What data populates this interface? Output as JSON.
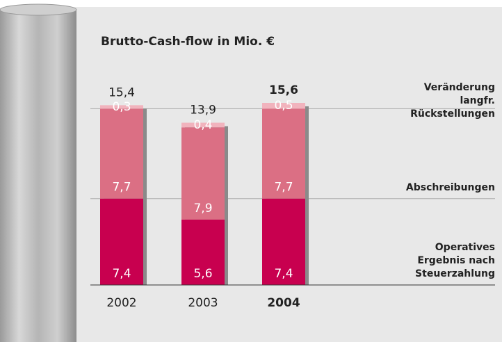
{
  "chart_data": {
    "type": "stacked-bar",
    "title": "Brutto-Cash-flow in Mio. €",
    "categories": [
      "2002",
      "2003",
      "2004"
    ],
    "emphasis": [
      false,
      false,
      true
    ],
    "series": [
      {
        "name": "Operatives Ergebnis nach Steuerzahlung",
        "color": "#c8004f",
        "values": [
          7.4,
          5.6,
          7.4
        ],
        "value_labels": [
          "7,4",
          "5,6",
          "7,4"
        ]
      },
      {
        "name": "Abschreibungen",
        "color": "#db6f84",
        "values": [
          7.7,
          7.9,
          7.7
        ],
        "value_labels": [
          "7,7",
          "7,9",
          "7,7"
        ]
      },
      {
        "name": "Veränderung langfr. Rückstellungen",
        "color": "#f1b3bd",
        "values": [
          0.3,
          0.4,
          0.5
        ],
        "value_labels": [
          "0,3",
          "0,4",
          "0,5"
        ]
      }
    ],
    "totals": {
      "values": [
        15.4,
        13.9,
        15.6
      ],
      "value_labels": [
        "15,4",
        "13,9",
        "15,6"
      ]
    }
  }
}
